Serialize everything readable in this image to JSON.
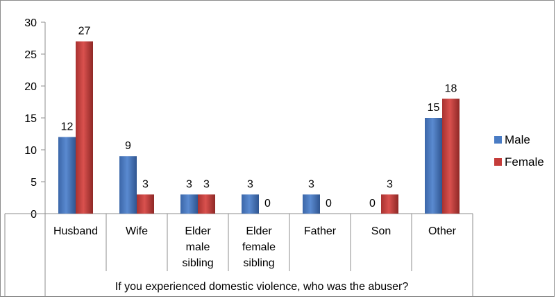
{
  "chart_data": {
    "type": "bar",
    "categories": [
      [
        "Husband"
      ],
      [
        "Wife"
      ],
      [
        "Elder",
        "male",
        "sibling"
      ],
      [
        "Elder",
        "female",
        "sibling"
      ],
      [
        "Father"
      ],
      [
        "Son"
      ],
      [
        "Other"
      ]
    ],
    "series": [
      {
        "name": "Male",
        "values": [
          12,
          9,
          3,
          3,
          3,
          0,
          15
        ],
        "color": "#4a7cc4"
      },
      {
        "name": "Female",
        "values": [
          27,
          3,
          3,
          0,
          0,
          3,
          18
        ],
        "color": "#c43c3a"
      }
    ],
    "data_labels": [
      [
        "12",
        "9",
        "3",
        "3",
        "3",
        "0",
        "15"
      ],
      [
        "27",
        "3",
        "3",
        "0",
        "0",
        "3",
        "18"
      ]
    ],
    "y_ticks": [
      "0",
      "5",
      "10",
      "15",
      "20",
      "25",
      "30"
    ],
    "ylim": [
      0,
      30
    ],
    "xlabel": "If you experienced domestic violence, who was the abuser?",
    "ylabel": "",
    "title": "",
    "legend_position": "right",
    "grid": false
  }
}
